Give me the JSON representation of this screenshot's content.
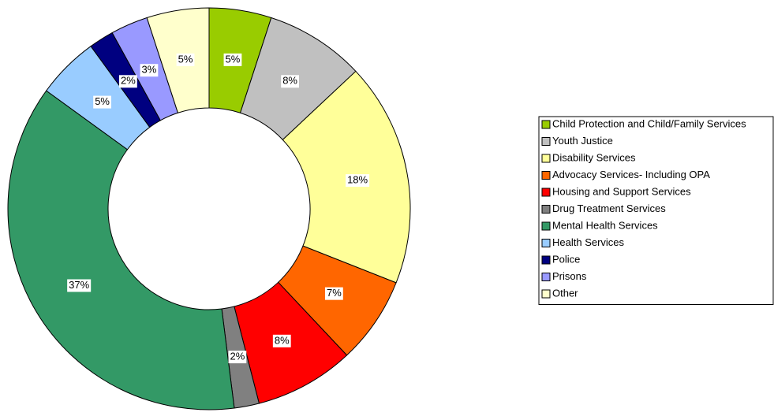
{
  "chart_data": {
    "type": "donut",
    "categories": [
      "Child Protection and Child/Family Services",
      "Youth Justice",
      "Disability Services",
      "Advocacy Services- Including OPA",
      "Housing and Support Services",
      "Drug Treatment Services",
      "Mental Health Services",
      "Health Services",
      "Police",
      "Prisons",
      "Other"
    ],
    "values": [
      5,
      8,
      18,
      7,
      8,
      2,
      37,
      5,
      2,
      3,
      5
    ],
    "value_labels": [
      "5%",
      "8%",
      "18%",
      "7%",
      "8%",
      "2%",
      "37%",
      "5%",
      "2%",
      "3%",
      "5%"
    ],
    "colors": [
      "#99cc00",
      "#c0c0c0",
      "#ffff99",
      "#ff6600",
      "#ff0000",
      "#808080",
      "#339966",
      "#99ccff",
      "#000080",
      "#9999ff",
      "#ffffcc"
    ],
    "legend": "right"
  }
}
